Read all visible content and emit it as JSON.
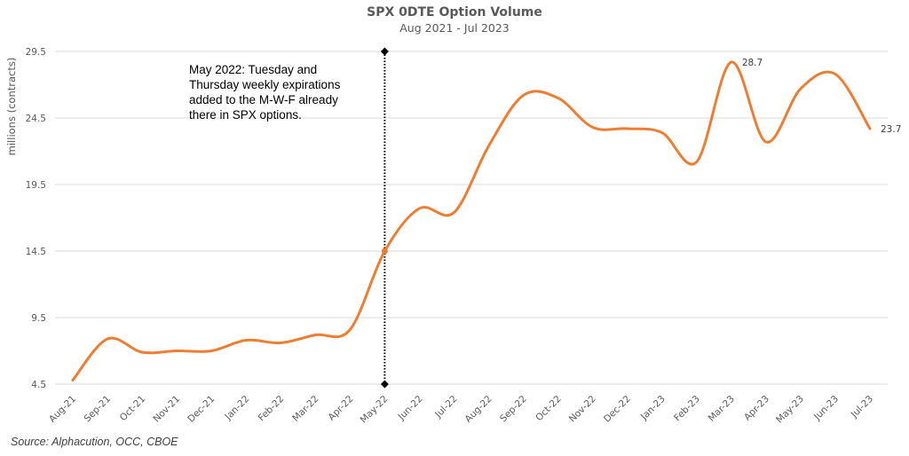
{
  "chart_data": {
    "type": "line",
    "title": "SPX 0DTE Option Volume",
    "subtitle": "Aug 2021 - Jul 2023",
    "xlabel": "",
    "ylabel": "millions (contracts)",
    "ylim": [
      4.5,
      29.5
    ],
    "yticks": [
      "4.5",
      "9.5",
      "14.5",
      "19.5",
      "24.5",
      "29.5"
    ],
    "grid": true,
    "categories": [
      "Aug-21",
      "Sep-21",
      "Oct-21",
      "Nov-21",
      "Dec-21",
      "Jan-22",
      "Feb-22",
      "Mar-22",
      "Apr-22",
      "May-22",
      "Jun-22",
      "Jul-22",
      "Aug-22",
      "Sep-22",
      "Oct-22",
      "Nov-22",
      "Dec-22",
      "Jan-23",
      "Feb-23",
      "Mar-23",
      "Apr-23",
      "May-23",
      "Jun-23",
      "Jul-23"
    ],
    "series": [
      {
        "name": "SPX 0DTE Option Volume",
        "color": "#ED7D31",
        "values": [
          4.8,
          7.9,
          6.9,
          7.0,
          7.0,
          7.8,
          7.6,
          8.2,
          8.6,
          14.5,
          17.7,
          17.4,
          22.4,
          26.2,
          26.0,
          23.8,
          23.7,
          23.4,
          21.2,
          28.7,
          22.7,
          26.7,
          27.8,
          23.7
        ]
      }
    ],
    "data_labels": [
      {
        "category": "Mar-23",
        "text": "28.7"
      },
      {
        "category": "Jul-23",
        "text": "23.7"
      }
    ],
    "annotation": {
      "category": "May-22",
      "lines": [
        "May 2022: Tuesday and",
        "Thursday weekly expirations",
        "added to the M-W-F already",
        "there in SPX options."
      ],
      "line_color": "#000000"
    }
  },
  "footer": {
    "source": "Source: Alphacution, OCC, CBOE"
  }
}
